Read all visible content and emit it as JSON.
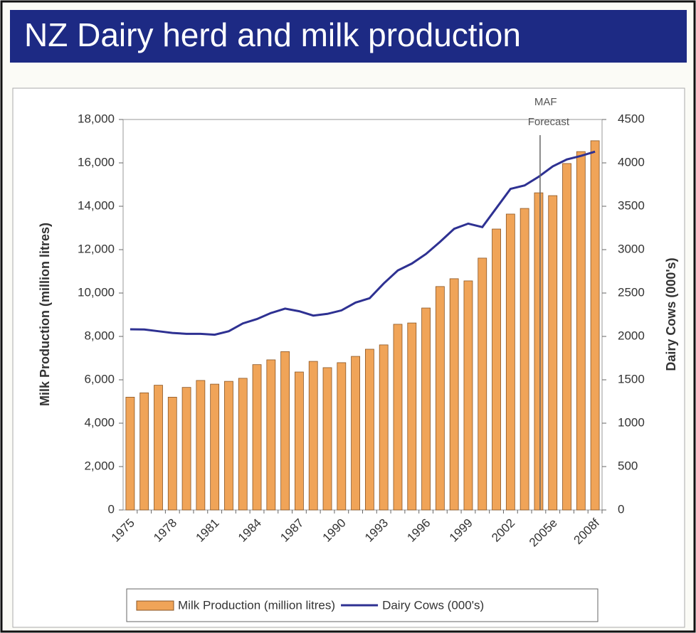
{
  "chart_data": {
    "type": "bar",
    "title": "NZ Dairy herd and milk production",
    "categories": [
      "1975",
      null,
      null,
      "1978",
      null,
      null,
      "1981",
      null,
      null,
      "1984",
      null,
      null,
      "1987",
      null,
      null,
      "1990",
      null,
      null,
      "1993",
      null,
      null,
      "1996",
      null,
      null,
      "1999",
      null,
      null,
      "2002",
      null,
      null,
      "2005e",
      null,
      null,
      "2008f"
    ],
    "series": [
      {
        "name": "Milk Production (million litres)",
        "type": "bar",
        "color": "#f0a458",
        "values": [
          5200,
          5400,
          5750,
          5200,
          5650,
          5970,
          5800,
          5930,
          6070,
          6700,
          6920,
          7300,
          6360,
          6850,
          6560,
          6790,
          7080,
          7410,
          7610,
          8560,
          8620,
          9310,
          10300,
          10660,
          10560,
          11610,
          12950,
          13640,
          13900,
          14620,
          14490,
          15970,
          16520,
          17020
        ]
      },
      {
        "name": "Dairy Cows (000's)",
        "type": "line",
        "axis": "y2",
        "color": "#2e3192",
        "values": [
          2082,
          2080,
          2060,
          2040,
          2030,
          2030,
          2020,
          2060,
          2150,
          2200,
          2270,
          2320,
          2290,
          2240,
          2260,
          2300,
          2390,
          2440,
          2610,
          2760,
          2840,
          2950,
          3090,
          3240,
          3300,
          3260,
          3480,
          3700,
          3740,
          3840,
          3960,
          4040,
          4080,
          4130
        ]
      }
    ],
    "y_label": "Milk Production (million litres)",
    "y2_label": "Dairy Cows (000's)",
    "ylim": [
      0,
      18000
    ],
    "yticks": [
      0,
      {
        "value": 2000,
        "label": "2,000"
      },
      {
        "value": 4000,
        "label": "4,000"
      },
      {
        "value": 6000,
        "label": "6,000"
      },
      {
        "value": 8000,
        "label": "8,000"
      },
      {
        "value": 10000,
        "label": "10,000"
      },
      {
        "value": 12000,
        "label": "12,000"
      },
      {
        "value": 14000,
        "label": "14,000"
      },
      {
        "value": 16000,
        "label": "16,000"
      },
      {
        "value": 18000,
        "label": "18,000"
      }
    ],
    "y2lim": [
      0,
      4500
    ],
    "y2ticks": [
      0,
      500,
      1000,
      1500,
      2000,
      2500,
      3000,
      3500,
      4000,
      4500
    ],
    "annotation": [
      "MAF",
      "Forecast"
    ],
    "legend": "bottom"
  }
}
